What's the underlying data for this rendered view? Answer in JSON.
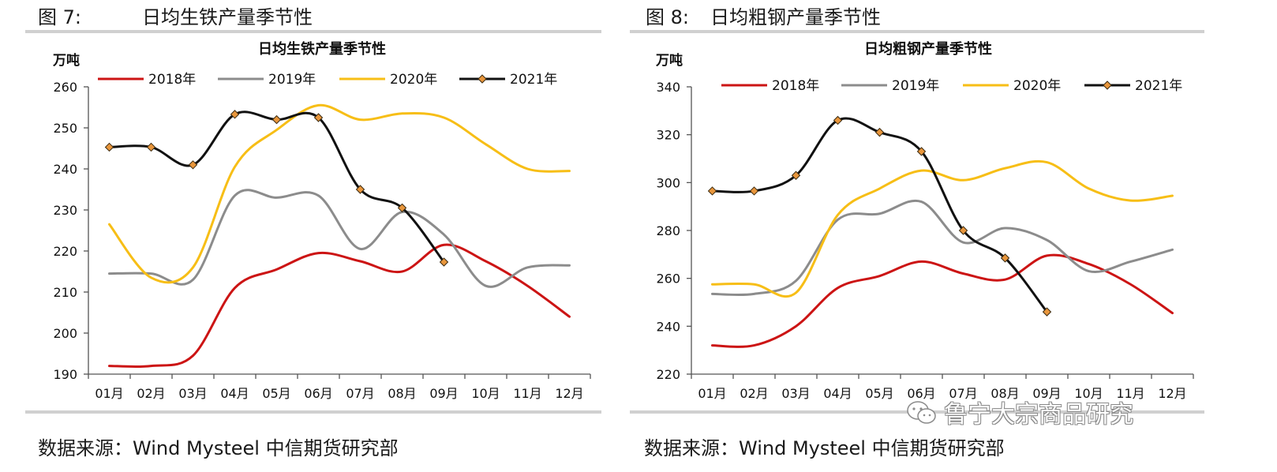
{
  "figures": [
    {
      "figure_number": "图 7:",
      "figure_title": "日均生铁产量季节性",
      "source": "数据来源：Wind Mysteel  中信期货研究部"
    },
    {
      "figure_number": "图 8:",
      "figure_title": "日均粗钢产量季节性",
      "source": "数据来源：Wind Mysteel 中信期货研究部"
    }
  ],
  "watermark": "鲁宁大宗商品研究",
  "colors": {
    "2018": "#cc1414",
    "2019": "#8c8c8c",
    "2020": "#f7be16",
    "2021": "#111111",
    "marker": "#e8963c"
  },
  "chart_data": [
    {
      "type": "line",
      "title": "日均生铁产量季节性",
      "ylabel": "万吨",
      "ylim": [
        190,
        260
      ],
      "yticks": [
        190,
        200,
        210,
        220,
        230,
        240,
        250,
        260
      ],
      "categories": [
        "01月",
        "02月",
        "03月",
        "04月",
        "05月",
        "06月",
        "07月",
        "08月",
        "09月",
        "10月",
        "11月",
        "12月"
      ],
      "legend_position": "top",
      "series": [
        {
          "name": "2018年",
          "x": [
            0,
            1,
            2,
            3,
            4,
            5,
            6,
            7,
            8,
            9,
            10,
            11
          ],
          "values": [
            192,
            192,
            194.5,
            211,
            215.5,
            219.5,
            217.5,
            215,
            221.5,
            217.5,
            211.5,
            204
          ]
        },
        {
          "name": "2019年",
          "x": [
            0,
            1,
            2,
            3,
            4,
            5,
            6,
            7,
            8,
            9,
            10,
            11
          ],
          "values": [
            214.5,
            214.5,
            213,
            233.5,
            233,
            233.5,
            220.5,
            229.5,
            224,
            211.5,
            216,
            216.5
          ]
        },
        {
          "name": "2020年",
          "x": [
            0,
            1,
            2,
            3,
            4,
            5,
            6,
            7,
            8,
            9,
            10,
            11
          ],
          "values": [
            226.5,
            213.5,
            216,
            240.5,
            249.5,
            255.5,
            252,
            253.5,
            252.5,
            246,
            240,
            239.5
          ]
        },
        {
          "name": "2021年",
          "x": [
            0,
            1,
            2,
            3,
            4,
            5,
            6,
            7,
            8
          ],
          "values": [
            245.3,
            245.3,
            241,
            253.3,
            252,
            252.5,
            235,
            230.5,
            217.3
          ],
          "markers": true
        }
      ]
    },
    {
      "type": "line",
      "title": "日均粗钢产量季节性",
      "ylabel": "万吨",
      "ylim": [
        220,
        340
      ],
      "yticks": [
        220,
        240,
        260,
        280,
        300,
        320,
        340
      ],
      "categories": [
        "01月",
        "02月",
        "03月",
        "04月",
        "05月",
        "06月",
        "07月",
        "08月",
        "09月",
        "10月",
        "11月",
        "12月"
      ],
      "legend_position": "top",
      "series": [
        {
          "name": "2018年",
          "x": [
            0,
            1,
            2,
            3,
            4,
            5,
            6,
            7,
            8,
            9,
            10,
            11
          ],
          "values": [
            232,
            232,
            240,
            256,
            261,
            267,
            262,
            259.5,
            269.5,
            266,
            257.5,
            245.5
          ]
        },
        {
          "name": "2019年",
          "x": [
            0,
            1,
            2,
            3,
            4,
            5,
            6,
            7,
            8,
            9,
            10,
            11
          ],
          "values": [
            253.5,
            253.5,
            259,
            284.5,
            287,
            292,
            275,
            281,
            276,
            263,
            267,
            272
          ]
        },
        {
          "name": "2020年",
          "x": [
            0,
            1,
            2,
            3,
            4,
            5,
            6,
            7,
            8,
            9,
            10,
            11
          ],
          "values": [
            257.5,
            257.5,
            254,
            286.5,
            297.5,
            305,
            301,
            306,
            308.5,
            297.5,
            292.5,
            294.5
          ]
        },
        {
          "name": "2021年",
          "x": [
            0,
            1,
            2,
            3,
            4,
            5,
            6,
            7,
            8
          ],
          "values": [
            296.5,
            296.5,
            303,
            326,
            321,
            313,
            280,
            268.5,
            246
          ],
          "markers": true
        }
      ]
    }
  ]
}
